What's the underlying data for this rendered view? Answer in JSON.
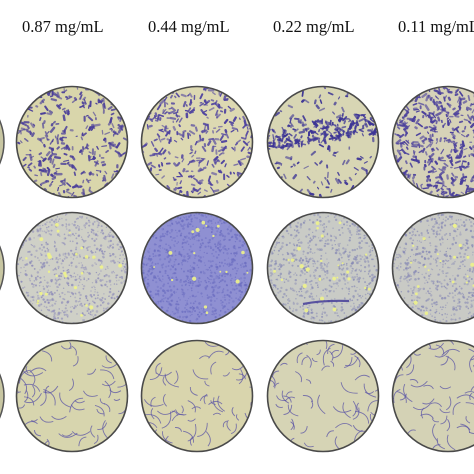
{
  "figure": {
    "column_headers": [
      "0.87 mg/mL",
      "0.44 mg/mL",
      "0.22 mg/mL",
      "0.11 mg/mL"
    ],
    "rows": [
      {
        "plates": [
          {
            "background": "#d9d6ab",
            "stain": "#4b3f9a",
            "pattern": "dense-cells"
          },
          {
            "background": "#ddd9b2",
            "stain": "#4f43a0",
            "pattern": "dense-cells-clustered"
          },
          {
            "background": "#d8d6b4",
            "stain": "#3d3596",
            "pattern": "dense-cells-band"
          },
          {
            "background": "#d6d2b8",
            "stain": "#4a3f9c",
            "pattern": "very-dense-cells"
          }
        ]
      },
      {
        "plates": [
          {
            "background": "#cfd0c7",
            "stain": "#8a88b8",
            "pattern": "fine-granular"
          },
          {
            "background": "#8f90d2",
            "stain": "#6a6cc0",
            "pattern": "confluent-purple"
          },
          {
            "background": "#c9cbc6",
            "stain": "#8487b4",
            "pattern": "fine-granular-streak"
          },
          {
            "background": "#c9cac5",
            "stain": "#8486b4",
            "pattern": "fine-granular"
          }
        ]
      },
      {
        "plates": [
          {
            "background": "#d7d5ae",
            "stain": "#5a53a6",
            "pattern": "sparse-filaments"
          },
          {
            "background": "#d9d5ad",
            "stain": "#5a53a6",
            "pattern": "sparse-filaments"
          },
          {
            "background": "#d6d4b5",
            "stain": "#5a53a6",
            "pattern": "sparse-filaments"
          },
          {
            "background": "#d4d2b5",
            "stain": "#5a53a6",
            "pattern": "sparse-filaments"
          }
        ]
      }
    ],
    "side_edge_color": "#c8c6a2"
  }
}
